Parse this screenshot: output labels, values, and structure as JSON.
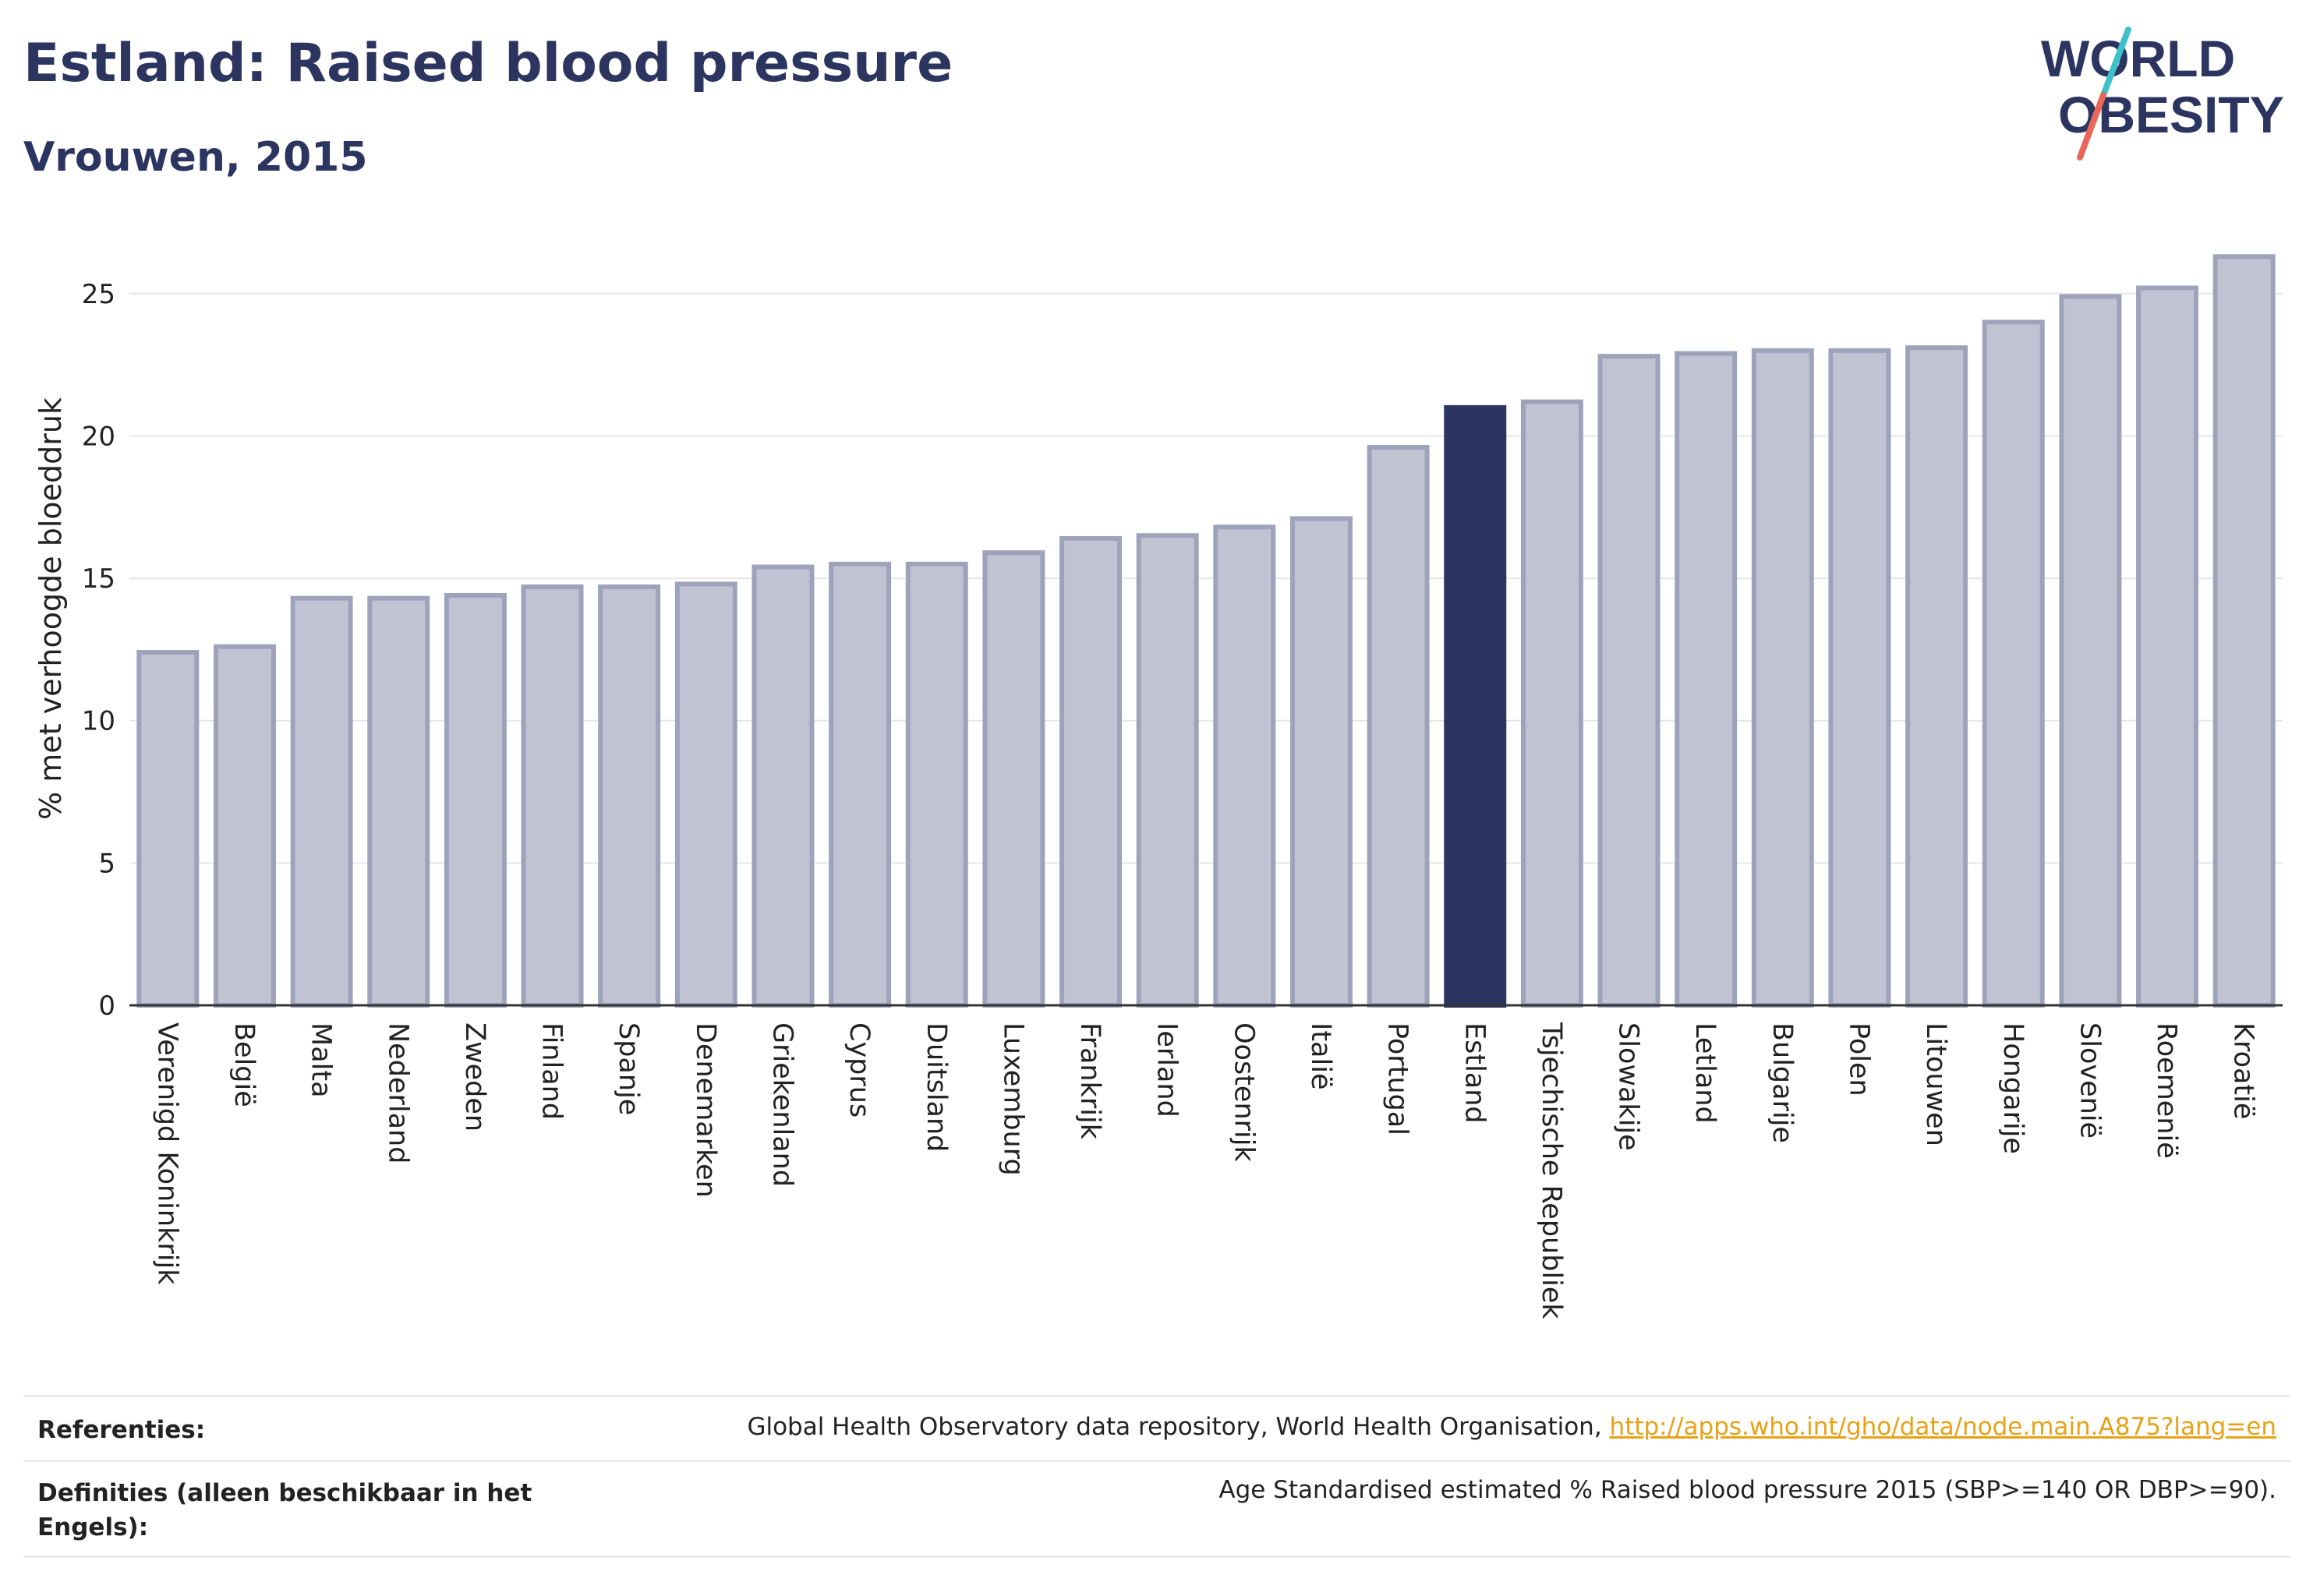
{
  "header": {
    "title": "Estland: Raised blood pressure",
    "subtitle": "Vrouwen, 2015"
  },
  "logo": {
    "line1": "WORLD",
    "line2": "OBESITY",
    "text_color": "#2b3560",
    "slash_colors": [
      "#3fc1c9",
      "#e8665a"
    ]
  },
  "colors": {
    "bar": "#c0c3d1",
    "bar_border": "#9ea3bb",
    "highlight": "#2b3560",
    "grid": "#e6e6ea",
    "axis": "#333333"
  },
  "chart_data": {
    "type": "bar",
    "ylabel": "% met verhoogde bloeddruk",
    "ylim": [
      0,
      26.5
    ],
    "yticks": [
      0,
      5,
      10,
      15,
      20,
      25
    ],
    "grid": true,
    "highlight": "Estland",
    "categories": [
      "Verenigd Koninkrijk",
      "België",
      "Malta",
      "Nederland",
      "Zweden",
      "Finland",
      "Spanje",
      "Denemarken",
      "Griekenland",
      "Cyprus",
      "Duitsland",
      "Luxemburg",
      "Frankrijk",
      "Ierland",
      "Oostenrijk",
      "Italië",
      "Portugal",
      "Estland",
      "Tsjechische Republiek",
      "Slowakije",
      "Letland",
      "Bulgarije",
      "Polen",
      "Litouwen",
      "Hongarije",
      "Slovenië",
      "Roemenië",
      "Kroatië"
    ],
    "values": [
      12.4,
      12.6,
      14.3,
      14.3,
      14.4,
      14.7,
      14.7,
      14.8,
      15.4,
      15.5,
      15.5,
      15.9,
      16.4,
      16.5,
      16.8,
      17.1,
      19.6,
      21.0,
      21.2,
      22.8,
      22.9,
      23.0,
      23.0,
      23.1,
      24.0,
      24.9,
      25.2,
      26.3
    ]
  },
  "footer": {
    "references_label": "Referenties:",
    "references_text": "Global Health Observatory data repository, World Health Organisation, ",
    "references_link": "http://apps.who.int/gho/data/node.main.A875?lang=en",
    "definitions_label": "Definities (alleen beschikbaar in het Engels):",
    "definitions_text": "Age Standardised estimated % Raised blood pressure 2015 (SBP>=140 OR DBP>=90)."
  }
}
